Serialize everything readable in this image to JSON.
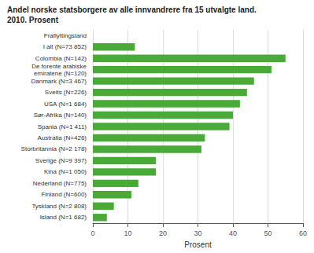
{
  "chart_data": {
    "type": "bar",
    "orientation": "horizontal",
    "title": "Andel norske statsborgere av alle innvandrere fra 15 utvalgte land.",
    "subtitle": "2010. Prosent",
    "xlabel": "Prosent",
    "categories": [
      "Fraflyttingsland",
      "I alt (N=73 852)",
      "Colombia (N=142)",
      "De forente arabiske\nemiratene (N=120)",
      "Danmark (N=3 467)",
      "Sveits (N=226)",
      "USA (N=1 684)",
      "Sør-Afrika (N=140)",
      "Spania (N=1 411)",
      "Australia (N=426)",
      "Storbritannia (N=2 178)",
      "Sverige (N=9 397)",
      "Kina (N=1 050)",
      "Nederland (N=775)",
      "Finland (N=600)",
      "Tyskland (N=2 808)",
      "Island (N=1 682)"
    ],
    "values": [
      null,
      12,
      55,
      51,
      46,
      44,
      42,
      40,
      39,
      32,
      31,
      18,
      18,
      13,
      11,
      6,
      4
    ],
    "color": "#4aaa38",
    "xlim": [
      0,
      60
    ],
    "xticks": [
      0,
      10,
      20,
      30,
      40,
      50,
      60
    ],
    "grid": true
  }
}
